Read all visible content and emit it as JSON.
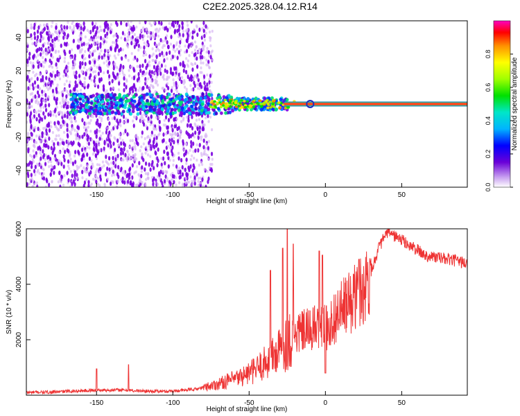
{
  "figure": {
    "title": "C2E2.2025.328.04.12.R14"
  },
  "chart_data": [
    {
      "type": "heatmap",
      "xlabel": "Height of straight line (km)",
      "ylabel": "Frequency (Hz)",
      "xlim": [
        -196,
        93
      ],
      "ylim": [
        -50,
        50
      ],
      "x_ticks": [
        -150,
        -100,
        -50,
        0,
        50
      ],
      "y_ticks": [
        -40,
        -20,
        0,
        20,
        40
      ],
      "x_tick_labels": [
        "-150",
        "-100",
        "-50",
        "0",
        "50"
      ],
      "y_tick_labels": [
        "-40",
        "-20",
        "0",
        "20",
        "40"
      ],
      "grid": false,
      "colorbar": {
        "label": "Normalized spectral amplitude",
        "range": [
          0.0,
          1.0
        ],
        "ticks": [
          0.0,
          0.2,
          0.4,
          0.6,
          0.8
        ],
        "tick_labels": [
          "0.0",
          "0.2",
          "0.4",
          "0.6",
          "0.8"
        ],
        "colormap": "rainbow (violet to red)",
        "position": "right"
      },
      "features": [
        {
          "description": "scattered weak returns",
          "x_range": [
            -196,
            -74
          ],
          "freq_range": [
            -50,
            50
          ],
          "amplitude": 0.1
        },
        {
          "description": "strong signal band",
          "x_range": [
            -167,
            -25
          ],
          "freq_center": 0,
          "freq_halfwidth": 6,
          "amplitude": 0.4
        },
        {
          "description": "steady carrier line",
          "x_range": [
            -27,
            93
          ],
          "freq_center": 0,
          "freq_halfwidth": 1,
          "amplitude": 0.95
        }
      ]
    },
    {
      "type": "line",
      "xlabel": "Height of straight line (km)",
      "ylabel": "SNR (10 * v/v)",
      "xlim": [
        -196,
        93
      ],
      "ylim": [
        0,
        6000
      ],
      "x_ticks": [
        -150,
        -100,
        -50,
        0,
        50
      ],
      "y_ticks": [
        2000,
        4000,
        6000
      ],
      "x_tick_labels": [
        "-150",
        "-100",
        "-50",
        "0",
        "50"
      ],
      "y_tick_labels": [
        "2000",
        "4000",
        "6000"
      ],
      "grid": false,
      "color": "#ee3333",
      "x": [
        -196,
        -180,
        -165,
        -150,
        -135,
        -120,
        -105,
        -95,
        -85,
        -78,
        -72,
        -65,
        -58,
        -52,
        -46,
        -40,
        -34,
        -30,
        -26,
        -22,
        -18,
        -14,
        -10,
        -6,
        -2,
        2,
        6,
        10,
        14,
        18,
        22,
        26,
        30,
        35,
        38,
        40,
        42,
        45,
        50,
        55,
        60,
        65,
        70,
        75,
        80,
        85,
        90,
        93
      ],
      "y": [
        100,
        110,
        150,
        180,
        190,
        150,
        140,
        170,
        220,
        300,
        380,
        500,
        600,
        750,
        900,
        1150,
        1400,
        1600,
        1850,
        2050,
        2250,
        2300,
        2350,
        2450,
        2400,
        2450,
        2800,
        3050,
        3250,
        3450,
        3700,
        3950,
        4500,
        5300,
        5650,
        5800,
        5900,
        5750,
        5600,
        5400,
        5250,
        5050,
        5000,
        4950,
        4900,
        4850,
        4800,
        4700
      ],
      "spikes": [
        {
          "x": -150,
          "y": 950
        },
        {
          "x": -129,
          "y": 1100
        },
        {
          "x": -36,
          "y": 4500
        },
        {
          "x": -28,
          "y": 5300
        },
        {
          "x": -25,
          "y": 6000
        },
        {
          "x": -21,
          "y": 5450
        },
        {
          "x": -4,
          "y": 5200
        },
        {
          "x": -2,
          "y": 5050
        },
        {
          "x": 22,
          "y": 4900
        }
      ],
      "dips": [
        {
          "x": 0,
          "y": 800
        }
      ]
    }
  ]
}
